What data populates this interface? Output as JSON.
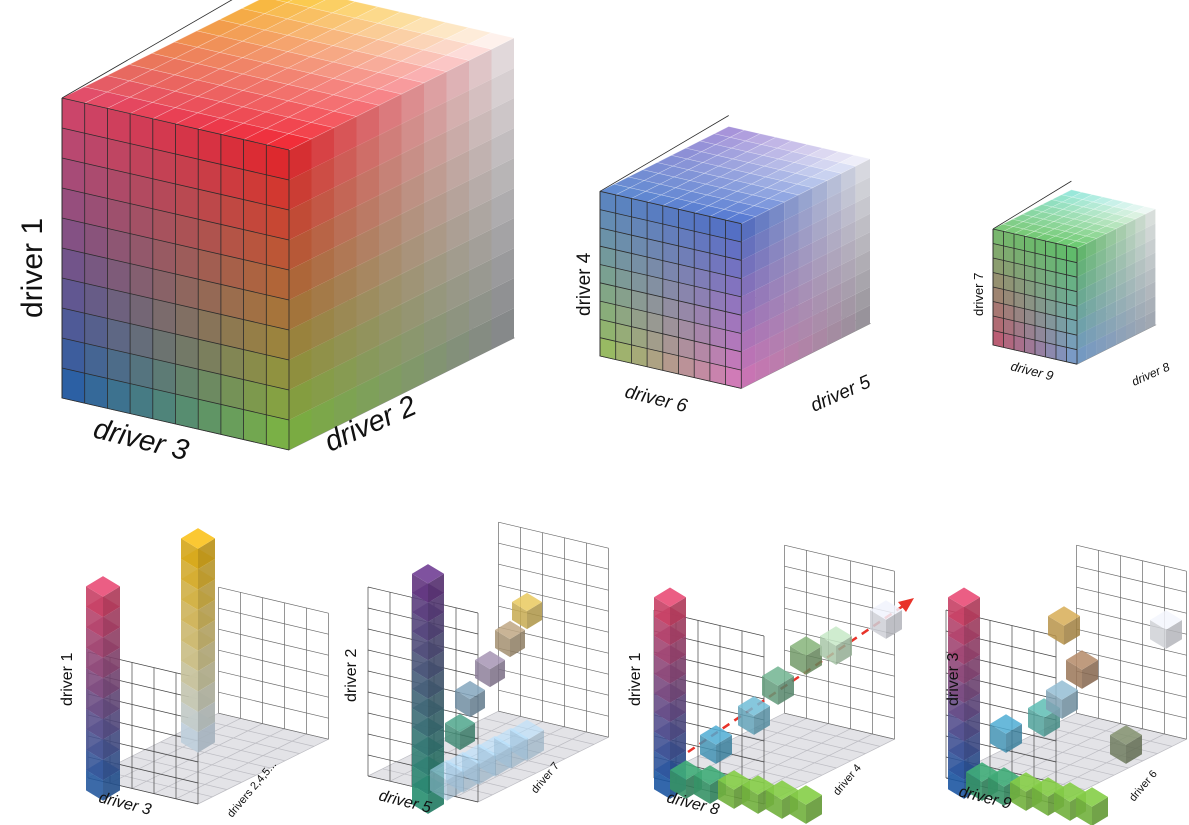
{
  "cubes": [
    {
      "id": "big",
      "labels": {
        "vertical": "driver 1",
        "left_axis": "driver 3",
        "right_axis": "driver 2"
      },
      "corner_colors": {
        "top_back": "#f2c12e",
        "top_right": "#f5f5f7",
        "top_left": "#d7476c",
        "front_top": "#e8202a",
        "bottom_left": "#1f5fb0",
        "bottom_front": "#7cc043",
        "bottom_right": "#8a8a92"
      }
    },
    {
      "id": "medium",
      "labels": {
        "vertical": "driver 4",
        "left_axis": "driver 6",
        "right_axis": "driver 5"
      },
      "corner_colors": {
        "top_back": "#a089d0",
        "top_right": "#f2f2f4",
        "top_left": "#5b86c8",
        "front_top": "#4d6fc9",
        "bottom_left": "#9bc55a",
        "bottom_front": "#e07ac0",
        "bottom_right": "#9a9a9e"
      }
    },
    {
      "id": "small",
      "labels": {
        "vertical": "driver 7",
        "left_axis": "driver 9",
        "right_axis": "driver 8"
      },
      "corner_colors": {
        "top_back": "#8fe0d6",
        "top_right": "#f3f3f5",
        "top_left": "#78c070",
        "front_top": "#5fc066",
        "bottom_left": "#c75570",
        "bottom_front": "#7a9fd6",
        "bottom_right": "#aab0b8"
      }
    }
  ],
  "panels": [
    {
      "id": "p1",
      "labels": {
        "vertical": "driver 1",
        "left_axis": "driver 3",
        "right_axis": "drivers 2,4,5..."
      }
    },
    {
      "id": "p2",
      "labels": {
        "vertical": "driver 2",
        "left_axis": "driver 5",
        "right_axis": "driver 7"
      }
    },
    {
      "id": "p3",
      "labels": {
        "vertical": "driver 1",
        "left_axis": "driver 8",
        "right_axis": "driver 4"
      }
    },
    {
      "id": "p4",
      "labels": {
        "vertical": "driver 3",
        "left_axis": "driver 9",
        "right_axis": "driver 6"
      }
    }
  ],
  "colors": {
    "grid_line": "#333333",
    "floor_fill": "#d9d9de",
    "arrow": "#e8332a"
  }
}
